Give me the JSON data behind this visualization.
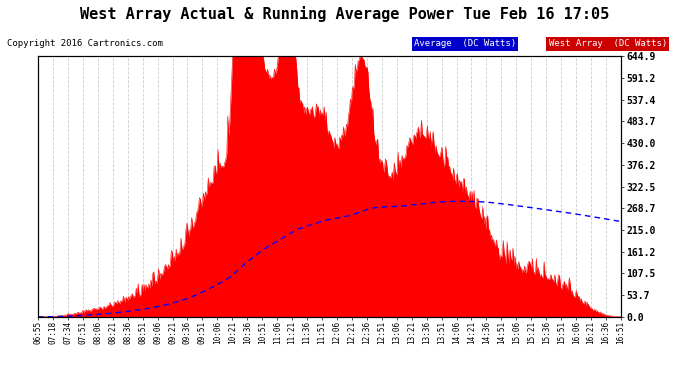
{
  "title": "West Array Actual & Running Average Power Tue Feb 16 17:05",
  "copyright": "Copyright 2016 Cartronics.com",
  "legend_labels": [
    "Average  (DC Watts)",
    "West Array  (DC Watts)"
  ],
  "ylabel_right_values": [
    644.9,
    591.2,
    537.4,
    483.7,
    430.0,
    376.2,
    322.5,
    268.7,
    215.0,
    161.2,
    107.5,
    53.7,
    0.0
  ],
  "ymax": 644.9,
  "ymin": 0.0,
  "x_tick_labels": [
    "06:55",
    "07:18",
    "07:34",
    "07:51",
    "08:06",
    "08:21",
    "08:36",
    "08:51",
    "09:06",
    "09:21",
    "09:36",
    "09:51",
    "10:06",
    "10:21",
    "10:36",
    "10:51",
    "11:06",
    "11:21",
    "11:36",
    "11:51",
    "12:06",
    "12:21",
    "12:36",
    "12:51",
    "13:06",
    "13:21",
    "13:36",
    "13:51",
    "14:06",
    "14:21",
    "14:36",
    "14:51",
    "15:06",
    "15:21",
    "15:36",
    "15:51",
    "16:06",
    "16:21",
    "16:36",
    "16:51"
  ],
  "background_color": "#ffffff",
  "grid_color": "#c8c8c8",
  "red_fill_color": "#ff0000",
  "blue_line_color": "#0000ff",
  "title_fontsize": 11,
  "copyright_fontsize": 6.5
}
